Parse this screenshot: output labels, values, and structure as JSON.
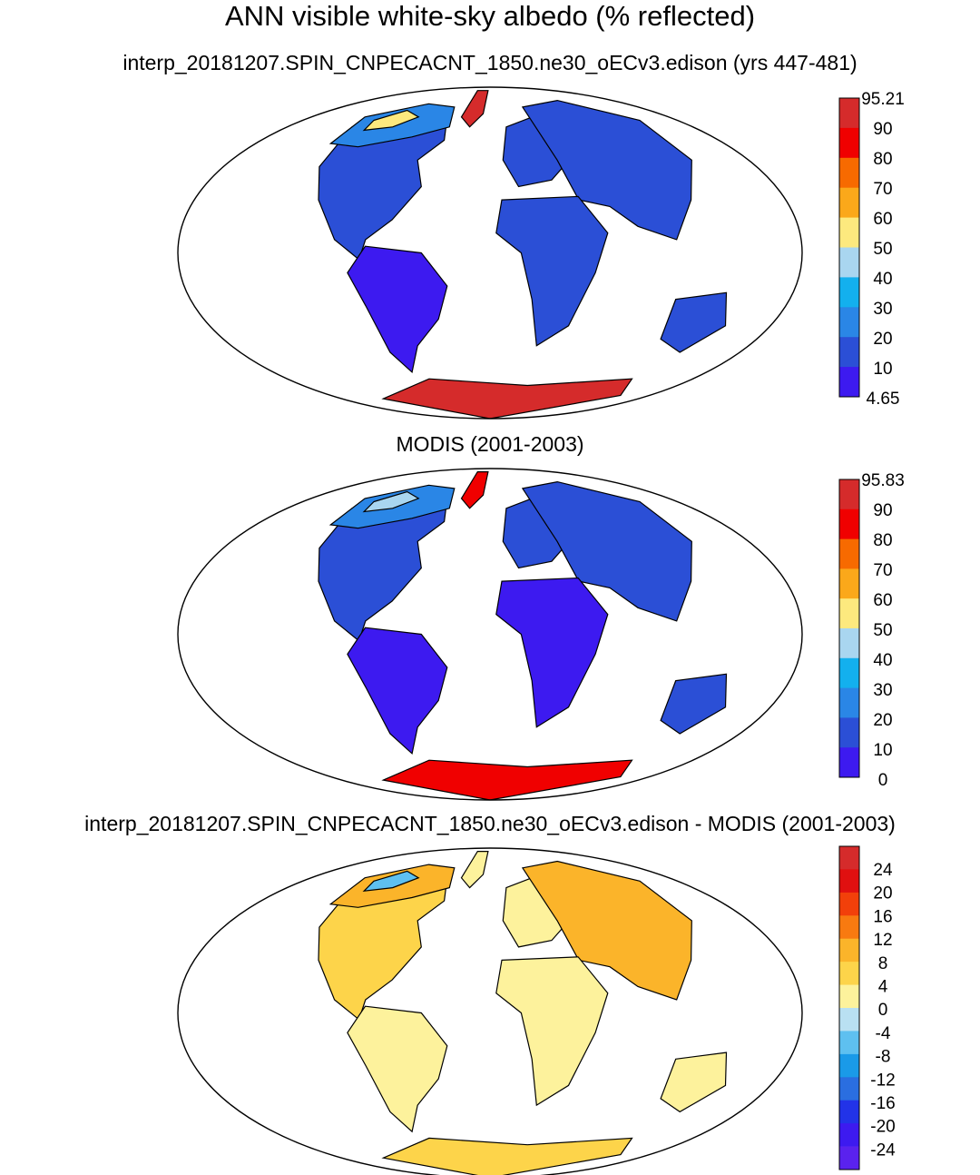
{
  "main_title": "ANN visible white-sky albedo (% reflected)",
  "panels": [
    {
      "title": "interp_20181207.SPIN_CNPECACNT_1850.ne30_oECv3.edison (yrs 447-481)",
      "colorbar_labels": [
        "95.21",
        "90",
        "80",
        "70",
        "60",
        "50",
        "40",
        "30",
        "20",
        "10",
        "4.65"
      ],
      "colors": [
        "#d52b2b",
        "#f00000",
        "#f76a00",
        "#fba81a",
        "#fde97e",
        "#a9d6f0",
        "#13b0ee",
        "#2a86e6",
        "#2b4fd6",
        "#3d1af0"
      ],
      "palette": {
        "ice": "#d52b2b",
        "greenland": "#d52b2b",
        "north": "#2a86e6",
        "americas_n": "#2b4fd6",
        "americas_s": "#3d1af0",
        "europe": "#2b4fd6",
        "asia": "#2b4fd6",
        "africa": "#2b4fd6",
        "australia": "#2b4fd6",
        "arctic_fringe": "#fde97e"
      }
    },
    {
      "title": "MODIS (2001-2003)",
      "colorbar_labels": [
        "95.83",
        "90",
        "80",
        "70",
        "60",
        "50",
        "40",
        "30",
        "20",
        "10",
        "0"
      ],
      "colors": [
        "#d52b2b",
        "#f00000",
        "#f76a00",
        "#fba81a",
        "#fde97e",
        "#a9d6f0",
        "#13b0ee",
        "#2a86e6",
        "#2b4fd6",
        "#3d1af0"
      ],
      "palette": {
        "ice": "#f00000",
        "greenland": "#f00000",
        "north": "#2a86e6",
        "americas_n": "#2b4fd6",
        "americas_s": "#3d1af0",
        "europe": "#2b4fd6",
        "asia": "#2b4fd6",
        "africa": "#3d1af0",
        "australia": "#2b4fd6",
        "arctic_fringe": "#a9d6f0"
      }
    },
    {
      "title": "interp_20181207.SPIN_CNPECACNT_1850.ne30_oECv3.edison - MODIS (2001-2003)",
      "colorbar_labels": [
        "24",
        "20",
        "16",
        "12",
        "8",
        "4",
        "0",
        "-4",
        "-8",
        "-12",
        "-16",
        "-20",
        "-24"
      ],
      "colors": [
        "#d52b2b",
        "#e01010",
        "#f2400a",
        "#f87a10",
        "#fbb42a",
        "#fdd44a",
        "#fdf29c",
        "#b9e0f2",
        "#5ec0f0",
        "#1a9ae8",
        "#2a6ee0",
        "#2233e8",
        "#3d1af0",
        "#5a22ee"
      ],
      "palette": {
        "ice": "#fdd44a",
        "greenland": "#fdf29c",
        "north": "#fbb42a",
        "americas_n": "#fdd44a",
        "americas_s": "#fdf29c",
        "europe": "#fdf29c",
        "asia": "#fbb42a",
        "africa": "#fdf29c",
        "australia": "#fdf29c",
        "arctic_fringe": "#5ec0f0"
      }
    }
  ]
}
